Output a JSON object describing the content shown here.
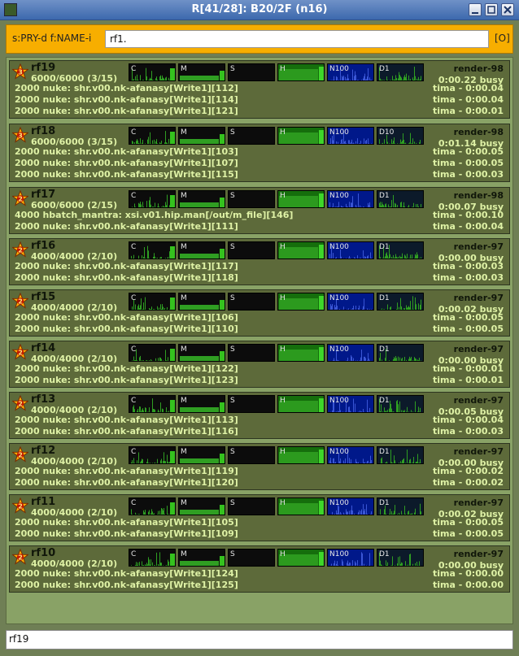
{
  "window": {
    "title": "R[41/28]: B20/2F (n16)"
  },
  "filter": {
    "label": "s:PRY-d f:NAME-i",
    "value": "rf1.",
    "button": "[O]"
  },
  "bottom_input": {
    "value": "rf19"
  },
  "graph_labels": [
    "C",
    "M",
    "S",
    "H",
    "N100"
  ],
  "renders": [
    {
      "name": "rf19",
      "capacity": "6000/6000 (3/15)",
      "host": "render-98",
      "busy": "0:00.22 busy",
      "net_label": "D1",
      "badge": "3",
      "tasks": [
        {
          "text": "2000 nuke: shr.v00.nk-afanasy[Write1][112]",
          "time": "tima - 0:00.04"
        },
        {
          "text": "2000 nuke: shr.v00.nk-afanasy[Write1][114]",
          "time": "tima - 0:00.04"
        },
        {
          "text": "2000 nuke: shr.v00.nk-afanasy[Write1][121]",
          "time": "tima - 0:00.01"
        }
      ]
    },
    {
      "name": "rf18",
      "capacity": "6000/6000 (3/15)",
      "host": "render-98",
      "busy": "0:01.14 busy",
      "net_label": "D10",
      "badge": "3",
      "tasks": [
        {
          "text": "2000 nuke: shr.v00.nk-afanasy[Write1][103]",
          "time": "tima - 0:00.05"
        },
        {
          "text": "2000 nuke: shr.v00.nk-afanasy[Write1][107]",
          "time": "tima - 0:00.05"
        },
        {
          "text": "2000 nuke: shr.v00.nk-afanasy[Write1][115]",
          "time": "tima - 0:00.03"
        }
      ]
    },
    {
      "name": "rf17",
      "capacity": "6000/6000 (2/15)",
      "host": "render-98",
      "busy": "0:00.07 busy",
      "net_label": "D1",
      "badge": "2",
      "tasks": [
        {
          "text": "4000 hbatch_mantra: xsi.v01.hip.man[/out/m_file][146]",
          "time": "tima - 0:00.10"
        },
        {
          "text": "2000 nuke: shr.v00.nk-afanasy[Write1][111]",
          "time": "tima - 0:00.04"
        }
      ]
    },
    {
      "name": "rf16",
      "capacity": "4000/4000 (2/10)",
      "host": "render-97",
      "busy": "0:00.00 busy",
      "net_label": "D1",
      "badge": "2",
      "tasks": [
        {
          "text": "2000 nuke: shr.v00.nk-afanasy[Write1][117]",
          "time": "tima - 0:00.03"
        },
        {
          "text": "2000 nuke: shr.v00.nk-afanasy[Write1][118]",
          "time": "tima - 0:00.03"
        }
      ]
    },
    {
      "name": "rf15",
      "capacity": "4000/4000 (2/10)",
      "host": "render-97",
      "busy": "0:00.02 busy",
      "net_label": "D1",
      "badge": "2",
      "tasks": [
        {
          "text": "2000 nuke: shr.v00.nk-afanasy[Write1][106]",
          "time": "tima - 0:00.05"
        },
        {
          "text": "2000 nuke: shr.v00.nk-afanasy[Write1][110]",
          "time": "tima - 0:00.05"
        }
      ]
    },
    {
      "name": "rf14",
      "capacity": "4000/4000 (2/10)",
      "host": "render-97",
      "busy": "0:00.00 busy",
      "net_label": "D1",
      "badge": "2",
      "tasks": [
        {
          "text": "2000 nuke: shr.v00.nk-afanasy[Write1][122]",
          "time": "tima - 0:00.01"
        },
        {
          "text": "2000 nuke: shr.v00.nk-afanasy[Write1][123]",
          "time": "tima - 0:00.01"
        }
      ]
    },
    {
      "name": "rf13",
      "capacity": "4000/4000 (2/10)",
      "host": "render-97",
      "busy": "0:00.05 busy",
      "net_label": "D1",
      "badge": "2",
      "tasks": [
        {
          "text": "2000 nuke: shr.v00.nk-afanasy[Write1][113]",
          "time": "tima - 0:00.04"
        },
        {
          "text": "2000 nuke: shr.v00.nk-afanasy[Write1][116]",
          "time": "tima - 0:00.03"
        }
      ]
    },
    {
      "name": "rf12",
      "capacity": "4000/4000 (2/10)",
      "host": "render-97",
      "busy": "0:00.00 busy",
      "net_label": "D1",
      "badge": "2",
      "tasks": [
        {
          "text": "2000 nuke: shr.v00.nk-afanasy[Write1][119]",
          "time": "tima - 0:00.02"
        },
        {
          "text": "2000 nuke: shr.v00.nk-afanasy[Write1][120]",
          "time": "tima - 0:00.02"
        }
      ]
    },
    {
      "name": "rf11",
      "capacity": "4000/4000 (2/10)",
      "host": "render-97",
      "busy": "0:00.02 busy",
      "net_label": "D1",
      "badge": "2",
      "tasks": [
        {
          "text": "2000 nuke: shr.v00.nk-afanasy[Write1][105]",
          "time": "tima - 0:00.05"
        },
        {
          "text": "2000 nuke: shr.v00.nk-afanasy[Write1][109]",
          "time": "tima - 0:00.05"
        }
      ]
    },
    {
      "name": "rf10",
      "capacity": "4000/4000 (2/10)",
      "host": "render-97",
      "busy": "0:00.00 busy",
      "net_label": "D1",
      "badge": "2",
      "tasks": [
        {
          "text": "2000 nuke: shr.v00.nk-afanasy[Write1][124]",
          "time": "tima - 0:00.00"
        },
        {
          "text": "2000 nuke: shr.v00.nk-afanasy[Write1][125]",
          "time": "tima - 0:00.00"
        }
      ]
    }
  ]
}
